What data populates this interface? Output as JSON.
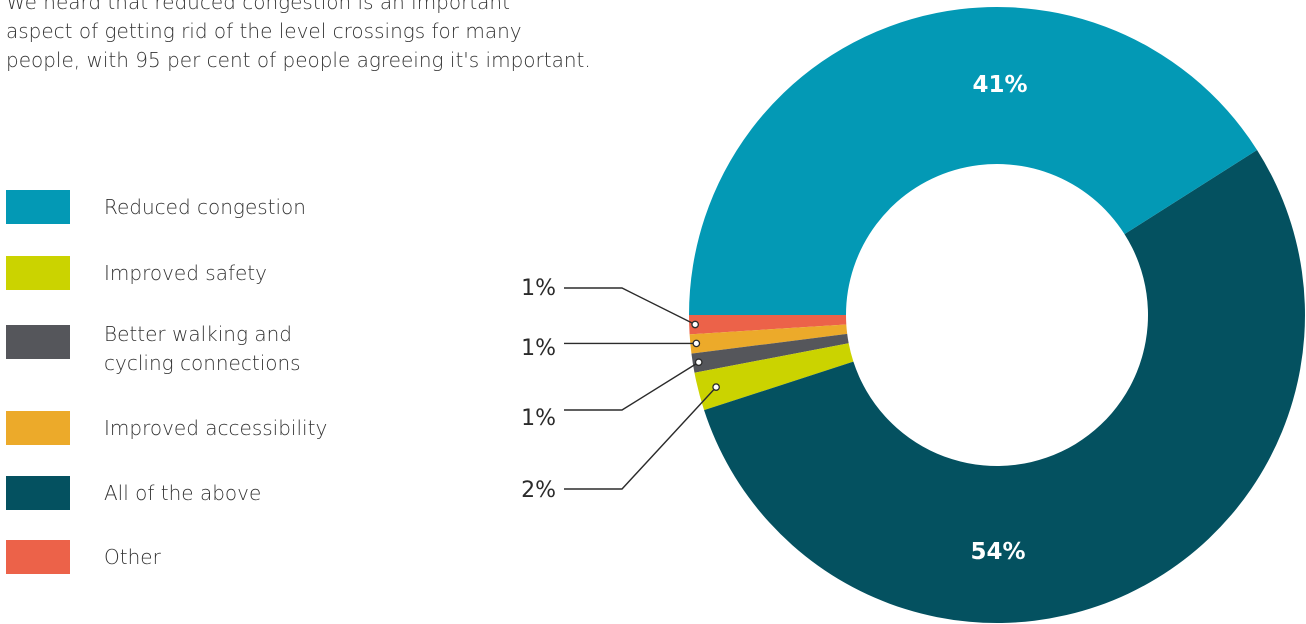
{
  "intro": {
    "line1": "We heard that reduced congestion is an important",
    "line2": "aspect of getting rid of the level crossings for many",
    "line3": "people, with 95 per cent of people agreeing it's important."
  },
  "chart_data": {
    "type": "pie",
    "donut": true,
    "title": "",
    "slices": [
      {
        "label": "Reduced congestion",
        "value": 41,
        "display": "41%",
        "color": "#0399b5"
      },
      {
        "label": "Improved safety",
        "value": 2,
        "display": "2%",
        "color": "#cbd300"
      },
      {
        "label": "Better walking and\ncycling connections",
        "value": 1,
        "display": "1%",
        "color": "#55565b"
      },
      {
        "label": "Improved accessibility",
        "value": 1,
        "display": "1%",
        "color": "#ecaa2a"
      },
      {
        "label": "All of the above",
        "value": 54,
        "display": "54%",
        "color": "#045160"
      },
      {
        "label": "Other",
        "value": 1,
        "display": "1%",
        "color": "#ec6249"
      }
    ],
    "legend_position": "left"
  }
}
